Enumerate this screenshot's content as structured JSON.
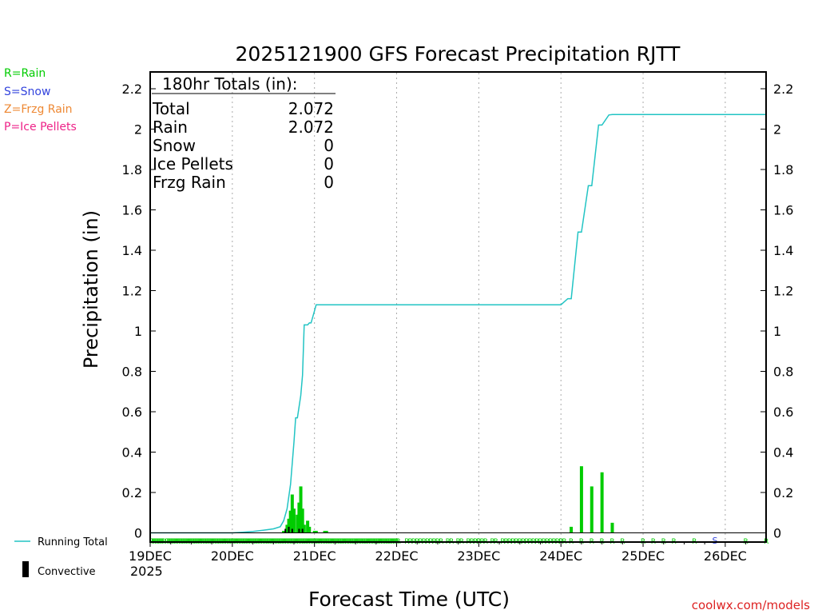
{
  "chart_data": {
    "type": "bar",
    "title": "2025121900 GFS Forecast Precipitation RJTT",
    "xlabel": "Forecast Time (UTC)",
    "ylabel": "Precipitation (in)",
    "ylim": [
      0,
      2.25
    ],
    "y_ticks": [
      "0",
      "0.2",
      "0.4",
      "0.6",
      "0.8",
      "1",
      "1.2",
      "1.4",
      "1.6",
      "1.8",
      "2",
      "2.2"
    ],
    "x_range_hours": [
      0,
      180
    ],
    "x_ticks": [
      {
        "hour": 0,
        "label": "19DEC"
      },
      {
        "hour": 24,
        "label": "20DEC"
      },
      {
        "hour": 48,
        "label": "21DEC"
      },
      {
        "hour": 72,
        "label": "22DEC"
      },
      {
        "hour": 96,
        "label": "23DEC"
      },
      {
        "hour": 120,
        "label": "24DEC"
      },
      {
        "hour": 144,
        "label": "25DEC"
      },
      {
        "hour": 168,
        "label": "26DEC"
      }
    ],
    "year_label": "2025",
    "legend": {
      "rain": "R=Rain",
      "snow": "S=Snow",
      "frzg": "Z=Frzg Rain",
      "ice": "P=Ice Pellets",
      "running_total": "Running Total",
      "convective": "Convective"
    },
    "colors": {
      "rain": "#00cc00",
      "snow": "#3344dd",
      "frzg": "#ee8833",
      "ice": "#ee2288",
      "line": "#22c4c4"
    },
    "totals": {
      "heading": "180hr Totals (in):",
      "rows": [
        {
          "label": "Total",
          "value": "2.072"
        },
        {
          "label": "Rain",
          "value": "2.072"
        },
        {
          "label": "Snow",
          "value": "0"
        },
        {
          "label": "Ice Pellets",
          "value": "0"
        },
        {
          "label": "Frzg Rain",
          "value": "0"
        }
      ]
    },
    "series": [
      {
        "name": "Precipitation (per period)",
        "kind": "bar",
        "hours": [
          39,
          40,
          40.5,
          41,
          41.5,
          42,
          43,
          43.5,
          44,
          44.5,
          45,
          46,
          46.5,
          48,
          48.5,
          51,
          51.5,
          123,
          126,
          129,
          132,
          135
        ],
        "values": [
          0.01,
          0.04,
          0.07,
          0.11,
          0.19,
          0.12,
          0.09,
          0.15,
          0.23,
          0.12,
          0.04,
          0.06,
          0.03,
          0.01,
          0.01,
          0.01,
          0.01,
          0.03,
          0.33,
          0.23,
          0.3,
          0.05
        ]
      },
      {
        "name": "Convective",
        "kind": "bar",
        "hours": [
          39.5,
          40.5,
          41.5,
          43.5,
          44.5
        ],
        "values": [
          0.02,
          0.03,
          0.02,
          0.02,
          0.02
        ]
      },
      {
        "name": "Running Total",
        "kind": "line",
        "hours": [
          0,
          24,
          27,
          30,
          33,
          36,
          38,
          39,
          40,
          41,
          42,
          42.5,
          43,
          44,
          44.5,
          45,
          46,
          46.5,
          47,
          48,
          48.5,
          50,
          51,
          120,
          122,
          123,
          125,
          126,
          128,
          129,
          131,
          132,
          134,
          135,
          180
        ],
        "values": [
          0,
          0,
          0.003,
          0.007,
          0.013,
          0.02,
          0.03,
          0.06,
          0.12,
          0.24,
          0.45,
          0.57,
          0.57,
          0.68,
          0.78,
          1.03,
          1.03,
          1.04,
          1.04,
          1.1,
          1.13,
          1.13,
          1.13,
          1.13,
          1.16,
          1.16,
          1.49,
          1.49,
          1.72,
          1.72,
          2.02,
          2.02,
          2.07,
          2.072,
          2.072
        ]
      }
    ],
    "precip_type_markers": {
      "label": "R",
      "snow_label": "S",
      "rain_hours": [
        0.5,
        1,
        1.5,
        2,
        2.5,
        3,
        3.5,
        4,
        5,
        5.5,
        6,
        6.5,
        7,
        7.5,
        8,
        8.5,
        9,
        9.5,
        10,
        10.5,
        11,
        11.5,
        12,
        12.5,
        13,
        13.5,
        14,
        14.5,
        15,
        15.5,
        16,
        16.5,
        17,
        17.5,
        18,
        18.5,
        19,
        19.5,
        20,
        20.5,
        21,
        21.5,
        22,
        22.5,
        23,
        23.5,
        24,
        24.5,
        25,
        25.5,
        26,
        26.5,
        27,
        27.5,
        28,
        28.5,
        29,
        29.5,
        30,
        30.5,
        31,
        31.5,
        32,
        32.5,
        33,
        33.5,
        34,
        34.5,
        35,
        35.5,
        36,
        36.5,
        37,
        37.5,
        38,
        38.5,
        39,
        39.5,
        40,
        40.5,
        41,
        41.5,
        42,
        42.5,
        43,
        43.5,
        44,
        44.5,
        45,
        45.5,
        46,
        46.5,
        47,
        47.5,
        48,
        48.5,
        49,
        49.5,
        50,
        50.5,
        51,
        51.5,
        52,
        52.5,
        53,
        53.5,
        54,
        54.5,
        55,
        55.5,
        56,
        56.5,
        57,
        57.5,
        58,
        58.5,
        59,
        59.5,
        60,
        60.5,
        61,
        61.5,
        62,
        62.5,
        63,
        63.5,
        64,
        64.5,
        65,
        65.5,
        66,
        66.5,
        67,
        67.5,
        68,
        68.5,
        69,
        69.5,
        70,
        70.5,
        71,
        71.5,
        72,
        72.5,
        75,
        76,
        77,
        78,
        79,
        80,
        81,
        82,
        83,
        84,
        85,
        87,
        88,
        90,
        91,
        93,
        94,
        95,
        96,
        97,
        98,
        100,
        101,
        103,
        104,
        105,
        106,
        107,
        108,
        109,
        110,
        111,
        112,
        113,
        114,
        115,
        116,
        117,
        118,
        119,
        120,
        121,
        123,
        126,
        129,
        132,
        135,
        138,
        144,
        147,
        150,
        153,
        159,
        174,
        180
      ],
      "snow_hours": [
        165
      ]
    },
    "watermark": "coolwx.com/models"
  }
}
